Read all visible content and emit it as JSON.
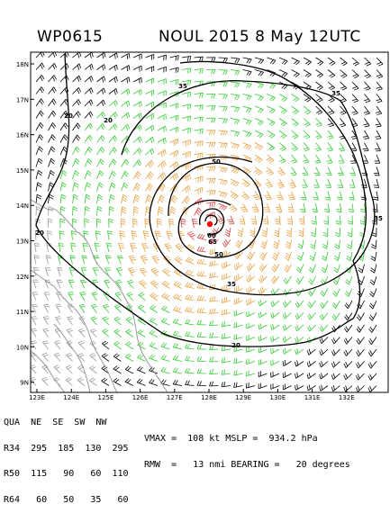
{
  "header": {
    "storm_id": "WP0615",
    "title": "NOUL 2015   8 May 12UTC"
  },
  "map": {
    "lat_labels": [
      "18N",
      "17N",
      "16N",
      "15N",
      "14N",
      "13N",
      "12N",
      "11N",
      "10N",
      "9N"
    ],
    "lon_labels": [
      "123E",
      "124E",
      "125E",
      "126E",
      "127E",
      "128E",
      "129E",
      "130E",
      "131E",
      "132E"
    ],
    "contour_labels": [
      "20",
      "20",
      "20",
      "20",
      "35",
      "35",
      "35",
      "35",
      "50",
      "50",
      "60",
      "65"
    ],
    "colors": {
      "coastline": "#999999",
      "contour": "#000000",
      "wind_lt34": "#000000",
      "wind_34_50": "#33cc33",
      "wind_50_64": "#e8a040",
      "wind_ge64": "#e04040",
      "center_marker": "#ff0000",
      "grid": "#aaaaaa"
    }
  },
  "radii_table": {
    "header": [
      "QUA",
      "NE",
      "SE",
      "SW",
      "NW"
    ],
    "rows": [
      {
        "label": "R34",
        "values": [
          "295",
          "185",
          "130",
          "295"
        ]
      },
      {
        "label": "R50",
        "values": [
          "115",
          "90",
          "60",
          "110"
        ]
      },
      {
        "label": "R64",
        "values": [
          "60",
          "50",
          "35",
          "60"
        ]
      }
    ]
  },
  "info": {
    "line1": "VMAX =  108 kt MSLP =  934.2 hPa",
    "line2": "RMW  =   13 nmi BEARING =   20 degrees"
  }
}
